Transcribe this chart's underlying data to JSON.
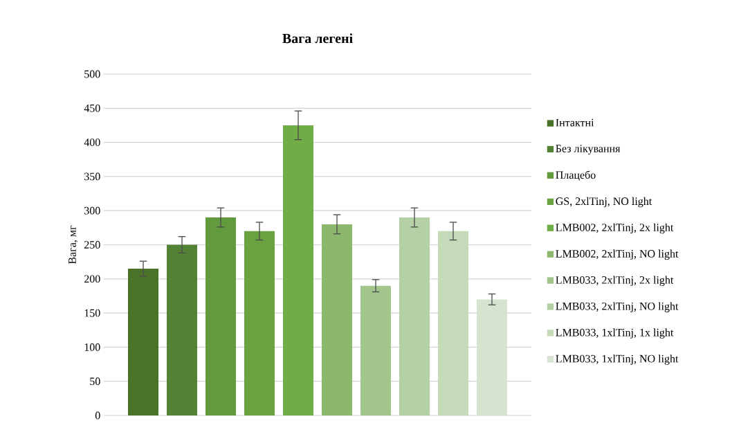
{
  "chart_data": {
    "type": "bar",
    "title": "Вага легені",
    "ylabel": "Вага, мг",
    "categories": [
      null
    ],
    "series": [
      {
        "name": "Інтактні",
        "color": "#4a7229",
        "values": [
          215
        ],
        "errors": [
          11
        ]
      },
      {
        "name": "Без лікування",
        "color": "#548235",
        "values": [
          250
        ],
        "errors": [
          12
        ]
      },
      {
        "name": "Плацебо",
        "color": "#629a3e",
        "values": [
          290
        ],
        "errors": [
          14
        ]
      },
      {
        "name": "GS, 2xlTinj, NO light",
        "color": "#6aa241",
        "values": [
          270
        ],
        "errors": [
          13
        ]
      },
      {
        "name": "LMB002, 2xlTinj, 2x light",
        "color": "#70ad47",
        "values": [
          425
        ],
        "errors": [
          21
        ]
      },
      {
        "name": "LMB002, 2xlTinj, NO light",
        "color": "#8cb86e",
        "values": [
          280
        ],
        "errors": [
          14
        ]
      },
      {
        "name": "LMB033, 2xlTinj, 2x light",
        "color": "#a2c58c",
        "values": [
          190
        ],
        "errors": [
          9
        ]
      },
      {
        "name": "LMB033, 2xlTinj, NO light",
        "color": "#b5d0a4",
        "values": [
          290
        ],
        "errors": [
          14
        ]
      },
      {
        "name": "LMB033, 1xlTinj, 1x light",
        "color": "#c5dab8",
        "values": [
          270
        ],
        "errors": [
          13
        ]
      },
      {
        "name": "LMB033, 1xlTinj, NO light",
        "color": "#d6e4cf",
        "values": [
          170
        ],
        "errors": [
          8
        ]
      }
    ],
    "ylim": [
      0,
      500
    ],
    "yticks": [
      0,
      50,
      100,
      150,
      200,
      250,
      300,
      350,
      400,
      450,
      500
    ],
    "grid": "y",
    "legend": "right"
  }
}
